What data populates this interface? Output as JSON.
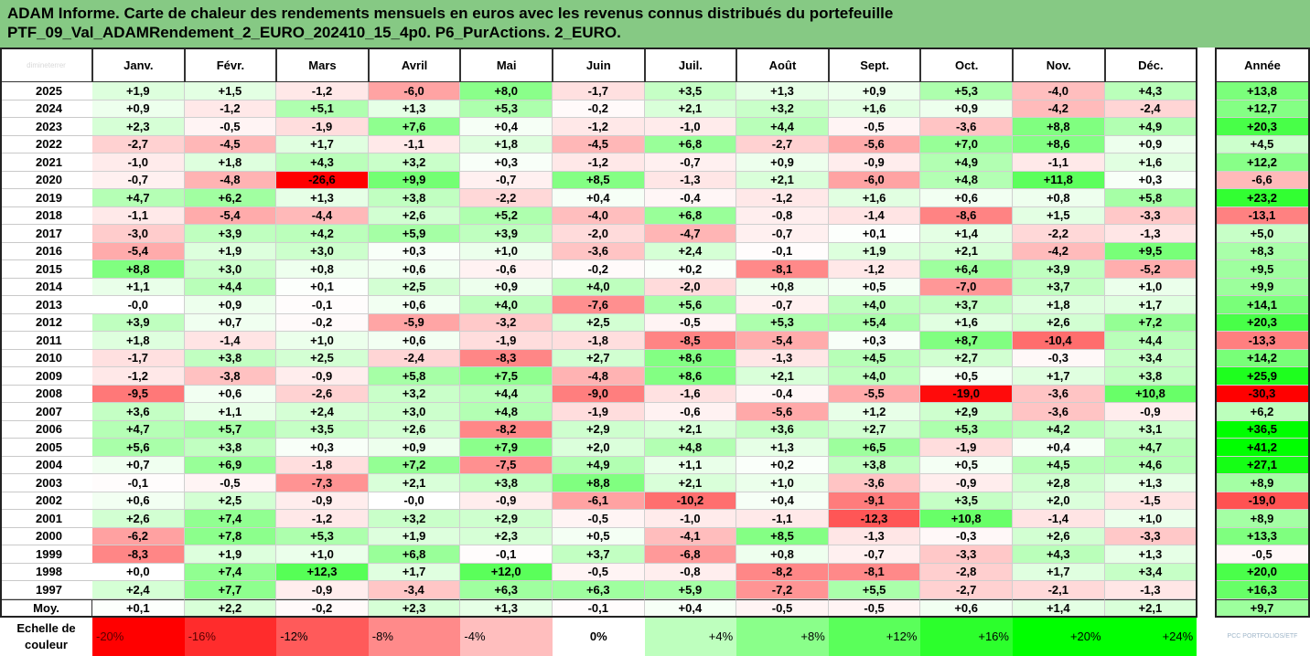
{
  "title_line1": "ADAM Informe. Carte de chaleur des rendements mensuels en euros avec les revenus connus distribués du portefeuille",
  "title_line2": "PTF_09_Val_ADAMRendement_2_EURO_202410_15_4p0. P6_PurActions. 2_EURO.",
  "corner_label": "dimineterrer",
  "logo_text": "PCC PORTFOLIOS/ETF",
  "colors": {
    "title_bg": "#86c984",
    "negative": "#ff0000",
    "positive": "#00ff00",
    "neutral": "#ffffff"
  },
  "chart_data": {
    "type": "heatmap",
    "months": [
      "Janv.",
      "Févr.",
      "Mars",
      "Avril",
      "Mai",
      "Juin",
      "Juil.",
      "Août",
      "Sept.",
      "Oct.",
      "Nov.",
      "Déc."
    ],
    "year_label": "Année",
    "avg_label": "Moy.",
    "scale_label": "Echelle de couleur",
    "rows": [
      {
        "year": "2025",
        "months": [
          "+1,9",
          "+1,5",
          "-1,2",
          "-6,0",
          "+8,0",
          "-1,7",
          "+3,5",
          "+1,3",
          "+0,9",
          "+5,3",
          "-4,0",
          "+4,3"
        ],
        "annual": "+13,8"
      },
      {
        "year": "2024",
        "months": [
          "+0,9",
          "-1,2",
          "+5,1",
          "+1,3",
          "+5,3",
          "-0,2",
          "+2,1",
          "+3,2",
          "+1,6",
          "+0,9",
          "-4,2",
          "-2,4"
        ],
        "annual": "+12,7"
      },
      {
        "year": "2023",
        "months": [
          "+2,3",
          "-0,5",
          "-1,9",
          "+7,6",
          "+0,4",
          "-1,2",
          "-1,0",
          "+4,4",
          "-0,5",
          "-3,6",
          "+8,8",
          "+4,9"
        ],
        "annual": "+20,3"
      },
      {
        "year": "2022",
        "months": [
          "-2,7",
          "-4,5",
          "+1,7",
          "-1,1",
          "+1,8",
          "-4,5",
          "+6,8",
          "-2,7",
          "-5,6",
          "+7,0",
          "+8,6",
          "+0,9"
        ],
        "annual": "+4,5"
      },
      {
        "year": "2021",
        "months": [
          "-1,0",
          "+1,8",
          "+4,3",
          "+3,2",
          "+0,3",
          "-1,2",
          "-0,7",
          "+0,9",
          "-0,9",
          "+4,9",
          "-1,1",
          "+1,6"
        ],
        "annual": "+12,2"
      },
      {
        "year": "2020",
        "months": [
          "-0,7",
          "-4,8",
          "-26,6",
          "+9,9",
          "-0,7",
          "+8,5",
          "-1,3",
          "+2,1",
          "-6,0",
          "+4,8",
          "+11,8",
          "+0,3"
        ],
        "annual": "-6,6"
      },
      {
        "year": "2019",
        "months": [
          "+4,7",
          "+6,2",
          "+1,3",
          "+3,8",
          "-2,2",
          "+0,4",
          "-0,4",
          "-1,2",
          "+1,6",
          "+0,6",
          "+0,8",
          "+5,8"
        ],
        "annual": "+23,2"
      },
      {
        "year": "2018",
        "months": [
          "-1,1",
          "-5,4",
          "-4,4",
          "+2,6",
          "+5,2",
          "-4,0",
          "+6,8",
          "-0,8",
          "-1,4",
          "-8,6",
          "+1,5",
          "-3,3"
        ],
        "annual": "-13,1"
      },
      {
        "year": "2017",
        "months": [
          "-3,0",
          "+3,9",
          "+4,2",
          "+5,9",
          "+3,9",
          "-2,0",
          "-4,7",
          "-0,7",
          "+0,1",
          "+1,4",
          "-2,2",
          "-1,3"
        ],
        "annual": "+5,0"
      },
      {
        "year": "2016",
        "months": [
          "-5,4",
          "+1,9",
          "+3,0",
          "+0,3",
          "+1,0",
          "-3,6",
          "+2,4",
          "-0,1",
          "+1,9",
          "+2,1",
          "-4,2",
          "+9,5"
        ],
        "annual": "+8,3"
      },
      {
        "year": "2015",
        "months": [
          "+8,8",
          "+3,0",
          "+0,8",
          "+0,6",
          "-0,6",
          "-0,2",
          "+0,2",
          "-8,1",
          "-1,2",
          "+6,4",
          "+3,9",
          "-5,2"
        ],
        "annual": "+9,5"
      },
      {
        "year": "2014",
        "months": [
          "+1,1",
          "+4,4",
          "+0,1",
          "+2,5",
          "+0,9",
          "+4,0",
          "-2,0",
          "+0,8",
          "+0,5",
          "-7,0",
          "+3,7",
          "+1,0"
        ],
        "annual": "+9,9"
      },
      {
        "year": "2013",
        "months": [
          "-0,0",
          "+0,9",
          "-0,1",
          "+0,6",
          "+4,0",
          "-7,6",
          "+5,6",
          "-0,7",
          "+4,0",
          "+3,7",
          "+1,8",
          "+1,7"
        ],
        "annual": "+14,1"
      },
      {
        "year": "2012",
        "months": [
          "+3,9",
          "+0,7",
          "-0,2",
          "-5,9",
          "-3,2",
          "+2,5",
          "-0,5",
          "+5,3",
          "+5,4",
          "+1,6",
          "+2,6",
          "+7,2"
        ],
        "annual": "+20,3"
      },
      {
        "year": "2011",
        "months": [
          "+1,8",
          "-1,4",
          "+1,0",
          "+0,6",
          "-1,9",
          "-1,8",
          "-8,5",
          "-5,4",
          "+0,3",
          "+8,7",
          "-10,4",
          "+4,4"
        ],
        "annual": "-13,3"
      },
      {
        "year": "2010",
        "months": [
          "-1,7",
          "+3,8",
          "+2,5",
          "-2,4",
          "-8,3",
          "+2,7",
          "+8,6",
          "-1,3",
          "+4,5",
          "+2,7",
          "-0,3",
          "+3,4"
        ],
        "annual": "+14,2"
      },
      {
        "year": "2009",
        "months": [
          "-1,2",
          "-3,8",
          "-0,9",
          "+5,8",
          "+7,5",
          "-4,8",
          "+8,6",
          "+2,1",
          "+4,0",
          "+0,5",
          "+1,7",
          "+3,8"
        ],
        "annual": "+25,9"
      },
      {
        "year": "2008",
        "months": [
          "-9,5",
          "+0,6",
          "-2,6",
          "+3,2",
          "+4,4",
          "-9,0",
          "-1,6",
          "-0,4",
          "-5,5",
          "-19,0",
          "-3,6",
          "+10,8"
        ],
        "annual": "-30,3"
      },
      {
        "year": "2007",
        "months": [
          "+3,6",
          "+1,1",
          "+2,4",
          "+3,0",
          "+4,8",
          "-1,9",
          "-0,6",
          "-5,6",
          "+1,2",
          "+2,9",
          "-3,6",
          "-0,9"
        ],
        "annual": "+6,2"
      },
      {
        "year": "2006",
        "months": [
          "+4,7",
          "+5,7",
          "+3,5",
          "+2,6",
          "-8,2",
          "+2,9",
          "+2,1",
          "+3,6",
          "+2,7",
          "+5,3",
          "+4,2",
          "+3,1"
        ],
        "annual": "+36,5"
      },
      {
        "year": "2005",
        "months": [
          "+5,6",
          "+3,8",
          "+0,3",
          "+0,9",
          "+7,9",
          "+2,0",
          "+4,8",
          "+1,3",
          "+6,5",
          "-1,9",
          "+0,4",
          "+4,7"
        ],
        "annual": "+41,2"
      },
      {
        "year": "2004",
        "months": [
          "+0,7",
          "+6,9",
          "-1,8",
          "+7,2",
          "-7,5",
          "+4,9",
          "+1,1",
          "+0,2",
          "+3,8",
          "+0,5",
          "+4,5",
          "+4,6"
        ],
        "annual": "+27,1"
      },
      {
        "year": "2003",
        "months": [
          "-0,1",
          "-0,5",
          "-7,3",
          "+2,1",
          "+3,8",
          "+8,8",
          "+2,1",
          "+1,0",
          "-3,6",
          "-0,9",
          "+2,8",
          "+1,3"
        ],
        "annual": "+8,9"
      },
      {
        "year": "2002",
        "months": [
          "+0,6",
          "+2,5",
          "-0,9",
          "-0,0",
          "-0,9",
          "-6,1",
          "-10,2",
          "+0,4",
          "-9,1",
          "+3,5",
          "+2,0",
          "-1,5"
        ],
        "annual": "-19,0"
      },
      {
        "year": "2001",
        "months": [
          "+2,6",
          "+7,4",
          "-1,2",
          "+3,2",
          "+2,9",
          "-0,5",
          "-1,0",
          "-1,1",
          "-12,3",
          "+10,8",
          "-1,4",
          "+1,0"
        ],
        "annual": "+8,9"
      },
      {
        "year": "2000",
        "months": [
          "-6,2",
          "+7,8",
          "+5,3",
          "+1,9",
          "+2,3",
          "+0,5",
          "-4,1",
          "+8,5",
          "-1,3",
          "-0,3",
          "+2,6",
          "-3,3"
        ],
        "annual": "+13,3"
      },
      {
        "year": "1999",
        "months": [
          "-8,3",
          "+1,9",
          "+1,0",
          "+6,8",
          "-0,1",
          "+3,7",
          "-6,8",
          "+0,8",
          "-0,7",
          "-3,3",
          "+4,3",
          "+1,3"
        ],
        "annual": "-0,5"
      },
      {
        "year": "1998",
        "months": [
          "+0,0",
          "+7,4",
          "+12,3",
          "+1,7",
          "+12,0",
          "-0,5",
          "-0,8",
          "-8,2",
          "-8,1",
          "-2,8",
          "+1,7",
          "+3,4"
        ],
        "annual": "+20,0"
      },
      {
        "year": "1997",
        "months": [
          "+2,4",
          "+7,7",
          "-0,9",
          "-3,4",
          "+6,3",
          "+6,3",
          "+5,9",
          "-7,2",
          "+5,5",
          "-2,7",
          "-2,1",
          "-1,3"
        ],
        "annual": "+16,3"
      }
    ],
    "average": {
      "months": [
        "+0,1",
        "+2,2",
        "-0,2",
        "+2,3",
        "+1,3",
        "-0,1",
        "+0,4",
        "-0,5",
        "-0,5",
        "+0,6",
        "+1,4",
        "+2,1"
      ],
      "annual": "+9,7"
    },
    "scale": [
      "-20%",
      "-16%",
      "-12%",
      "-8%",
      "-4%",
      "0%",
      "+4%",
      "+8%",
      "+12%",
      "+16%",
      "+20%",
      "+24%"
    ],
    "color_scale_range": [
      -20,
      24
    ]
  }
}
